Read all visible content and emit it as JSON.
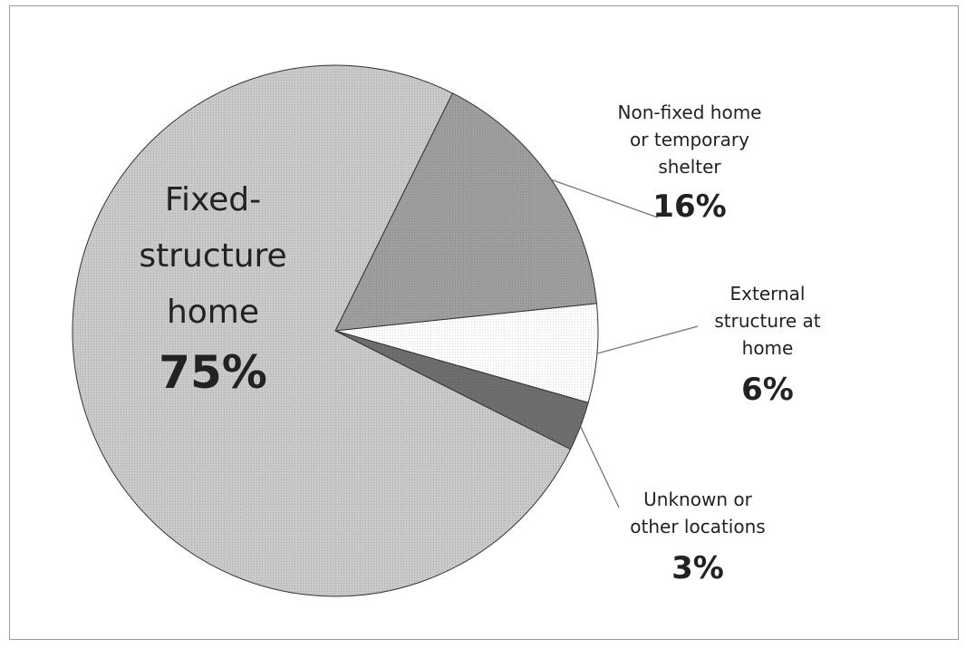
{
  "chart_data": {
    "type": "pie",
    "title": "",
    "slices": [
      {
        "label_lines": [
          "Fixed-",
          "structure",
          "home"
        ],
        "value": 75,
        "value_label": "75%",
        "color": "#c9c9c9"
      },
      {
        "label_lines": [
          "Non-fixed home",
          "or temporary",
          "shelter"
        ],
        "value": 16,
        "value_label": "16%",
        "color": "#9e9e9e"
      },
      {
        "label_lines": [
          "External",
          "structure at",
          "home"
        ],
        "value": 6,
        "value_label": "6%",
        "color": "#ffffff"
      },
      {
        "label_lines": [
          "Unknown or",
          "other locations"
        ],
        "value": 3,
        "value_label": "3%",
        "color": "#6e6e6e"
      }
    ]
  }
}
